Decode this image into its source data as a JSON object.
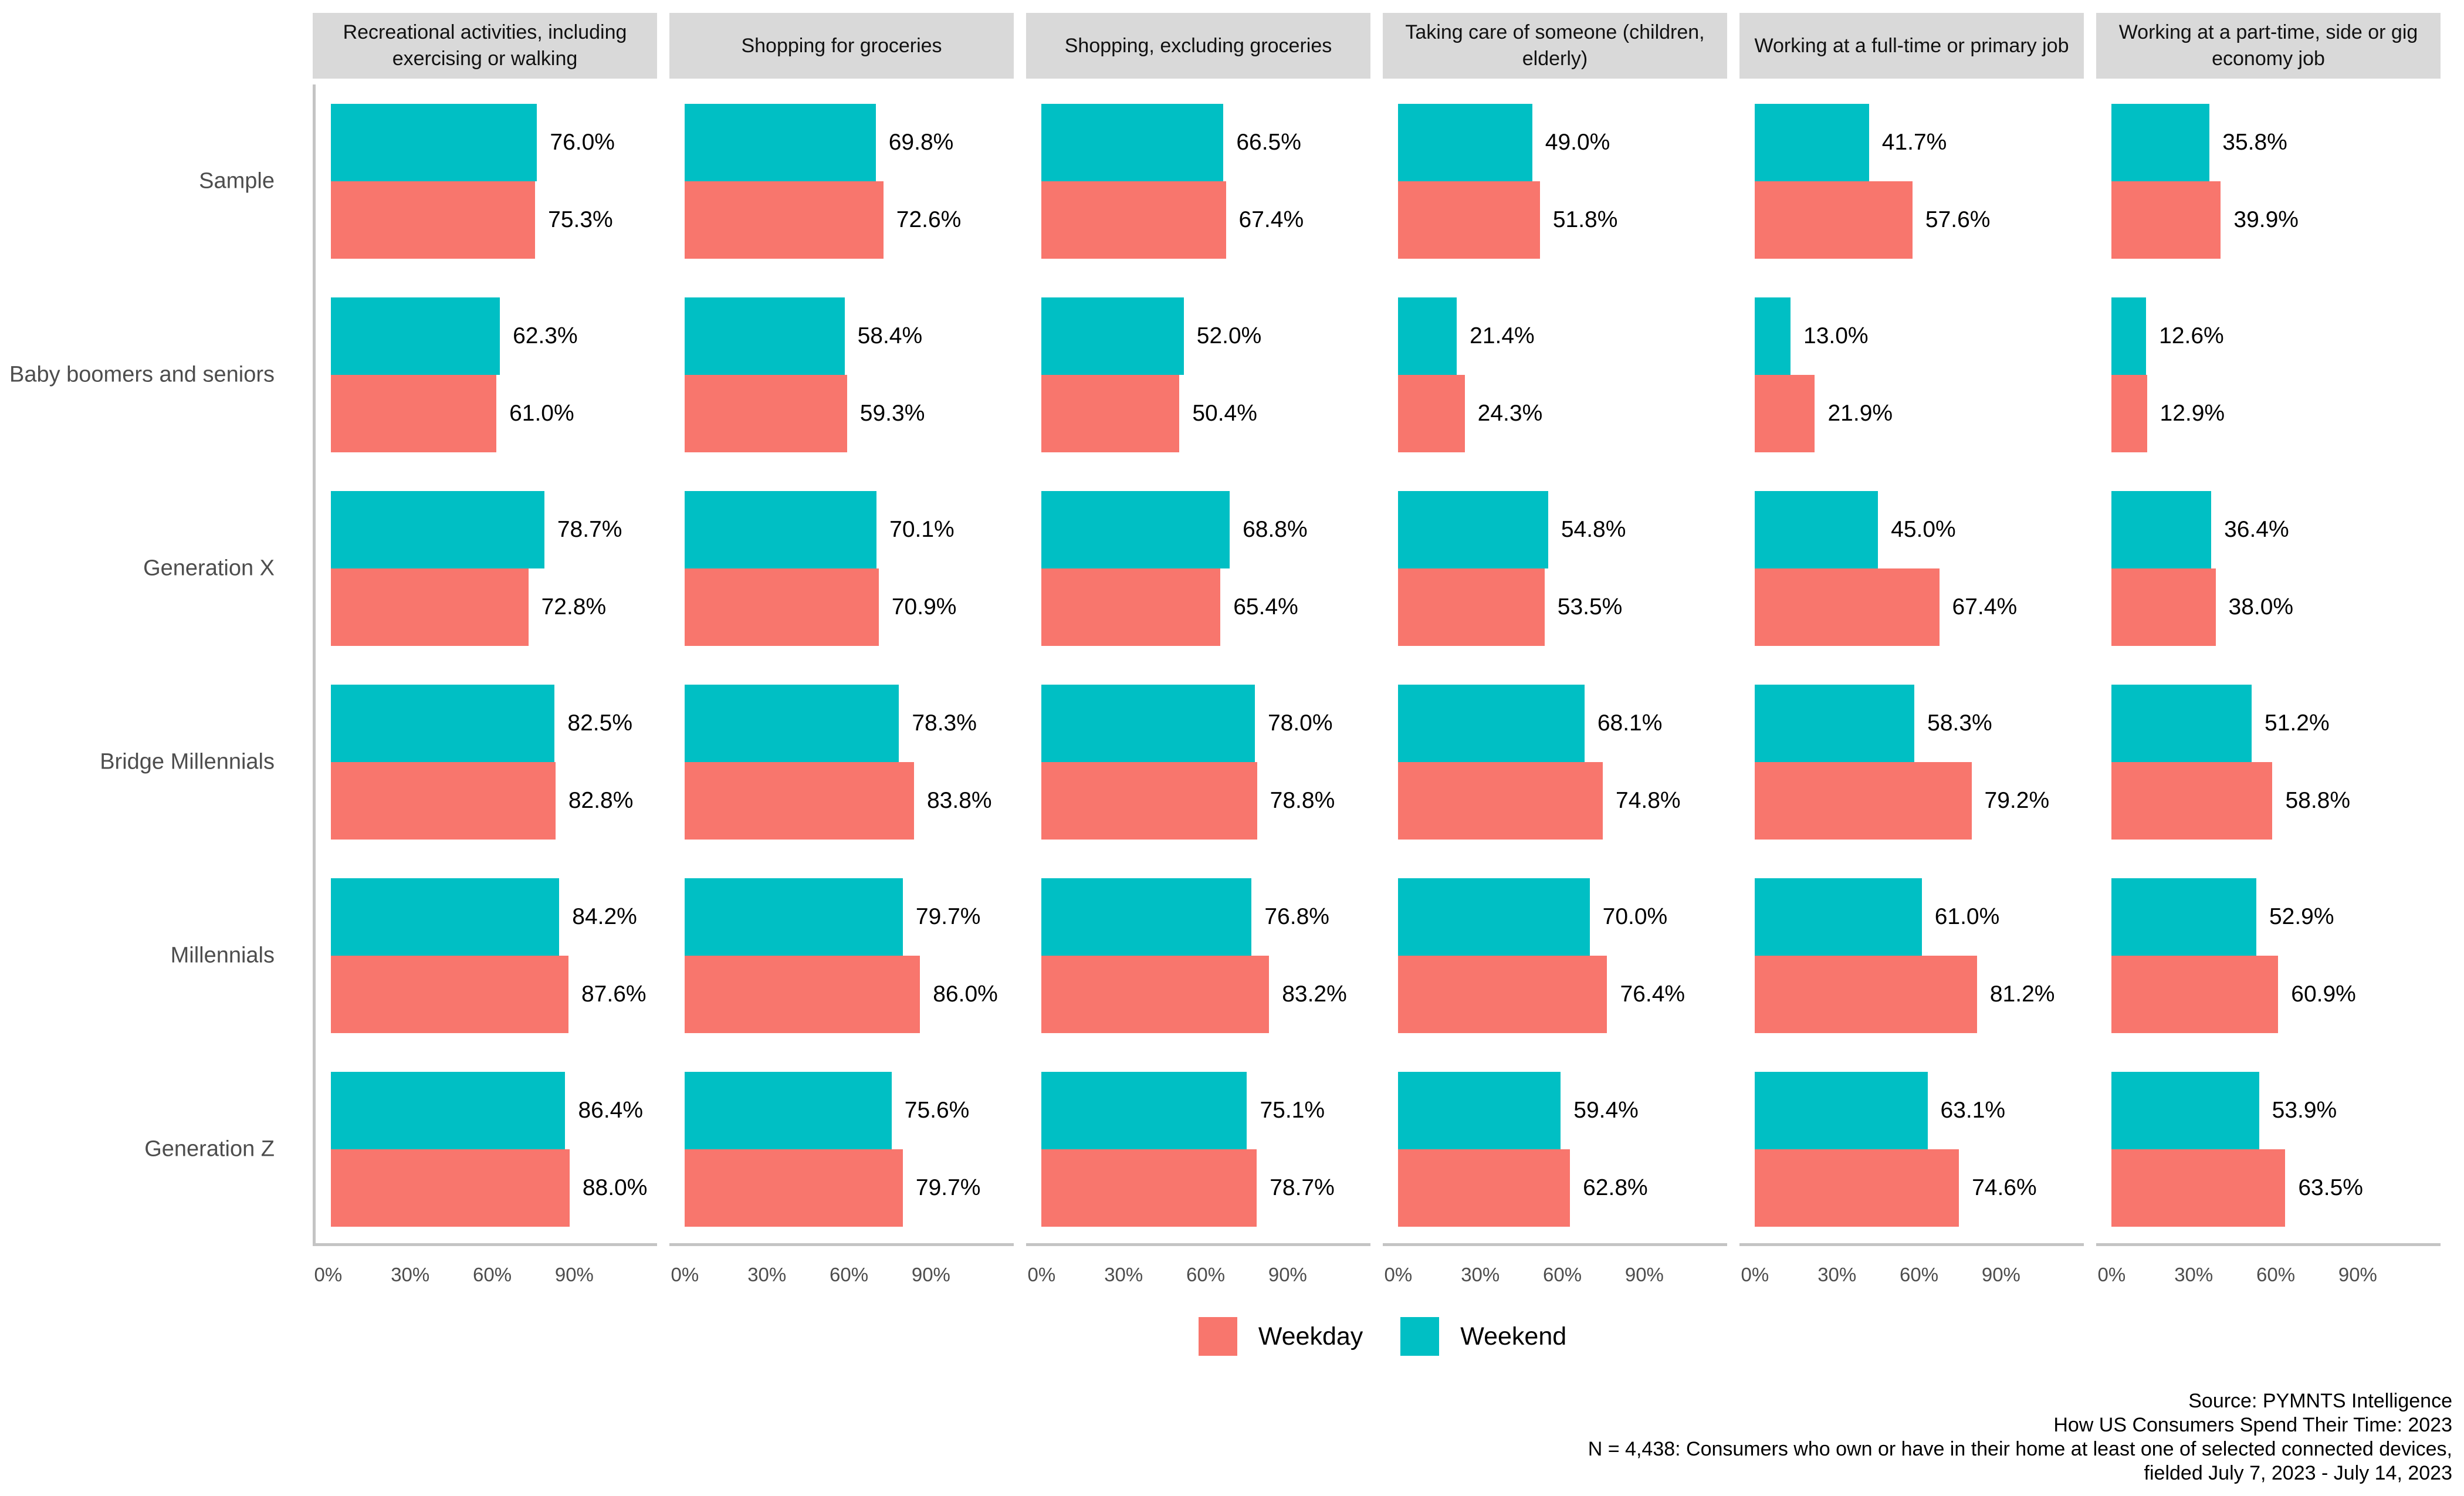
{
  "colors": {
    "weekday": "#f8766d",
    "weekend": "#00bfc4",
    "strip_bg": "#d9d9d9",
    "axis_line": "#c4c4c4",
    "axis_text": "#4d4d4d"
  },
  "legend": {
    "items": [
      {
        "label": "Weekday",
        "color_key": "weekday"
      },
      {
        "label": "Weekend",
        "color_key": "weekend"
      }
    ]
  },
  "source": {
    "lines": [
      "Source: PYMNTS Intelligence",
      "How US Consumers Spend Their Time: 2023",
      "N = 4,438: Consumers who own or have in their home at least one of selected connected devices,",
      "fielded July 7, 2023 - July 14, 2023"
    ]
  },
  "chart_data": {
    "type": "bar",
    "orientation": "horizontal",
    "grid": false,
    "legend_position": "bottom",
    "value_suffix": "%",
    "xlim": [
      0,
      113
    ],
    "x_ticks_values": [
      0,
      30,
      60,
      90
    ],
    "x_tick_labels": [
      "0%",
      "30%",
      "60%",
      "90%"
    ],
    "categories": [
      "Sample",
      "Baby boomers and seniors",
      "Generation X",
      "Bridge Millennials",
      "Millennials",
      "Generation Z"
    ],
    "series_names": [
      "Weekend",
      "Weekday"
    ],
    "facets": [
      {
        "title": "Recreational activities, including exercising or walking",
        "series": [
          {
            "name": "Weekend",
            "values": [
              76.0,
              62.3,
              78.7,
              82.5,
              84.2,
              86.4
            ]
          },
          {
            "name": "Weekday",
            "values": [
              75.3,
              61.0,
              72.8,
              82.8,
              87.6,
              88.0
            ]
          }
        ]
      },
      {
        "title": "Shopping for groceries",
        "series": [
          {
            "name": "Weekend",
            "values": [
              69.8,
              58.4,
              70.1,
              78.3,
              79.7,
              75.6
            ]
          },
          {
            "name": "Weekday",
            "values": [
              72.6,
              59.3,
              70.9,
              83.8,
              86.0,
              79.7
            ]
          }
        ]
      },
      {
        "title": "Shopping, excluding groceries",
        "series": [
          {
            "name": "Weekend",
            "values": [
              66.5,
              52.0,
              68.8,
              78.0,
              76.8,
              75.1
            ]
          },
          {
            "name": "Weekday",
            "values": [
              67.4,
              50.4,
              65.4,
              78.8,
              83.2,
              78.7
            ]
          }
        ]
      },
      {
        "title": "Taking care of someone (children, elderly)",
        "series": [
          {
            "name": "Weekend",
            "values": [
              49.0,
              21.4,
              54.8,
              68.1,
              70.0,
              59.4
            ]
          },
          {
            "name": "Weekday",
            "values": [
              51.8,
              24.3,
              53.5,
              74.8,
              76.4,
              62.8
            ]
          }
        ]
      },
      {
        "title": "Working at a full-time or primary job",
        "series": [
          {
            "name": "Weekend",
            "values": [
              41.7,
              13.0,
              45.0,
              58.3,
              61.0,
              63.1
            ]
          },
          {
            "name": "Weekday",
            "values": [
              57.6,
              21.9,
              67.4,
              79.2,
              81.2,
              74.6
            ]
          }
        ]
      },
      {
        "title": "Working at a part-time, side or gig economy job",
        "series": [
          {
            "name": "Weekend",
            "values": [
              35.8,
              12.6,
              36.4,
              51.2,
              52.9,
              53.9
            ]
          },
          {
            "name": "Weekday",
            "values": [
              39.9,
              12.9,
              38.0,
              58.8,
              60.9,
              63.5
            ]
          }
        ]
      }
    ]
  }
}
